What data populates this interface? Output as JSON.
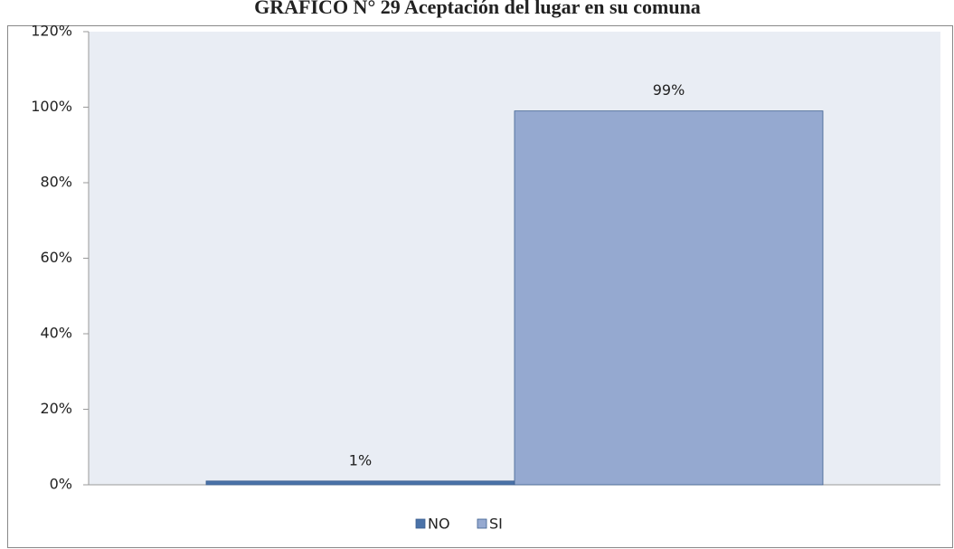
{
  "chart_data": {
    "type": "bar",
    "title": "GRAFICO N° 29 Aceptación del lugar en su comuna",
    "categories": [
      null
    ],
    "series": [
      {
        "name": "NO",
        "color": "#4a72a8",
        "values": [
          1
        ],
        "value_labels": [
          "1%"
        ]
      },
      {
        "name": "SI",
        "color": "#95a9d0",
        "values": [
          99
        ],
        "value_labels": [
          "99%"
        ]
      }
    ],
    "ylim": [
      0,
      120
    ],
    "yticks": [
      {
        "value": 0,
        "label": "0%"
      },
      {
        "value": 20,
        "label": "20%"
      },
      {
        "value": 40,
        "label": "40%"
      },
      {
        "value": 60,
        "label": "60%"
      },
      {
        "value": 80,
        "label": "80%"
      },
      {
        "value": 100,
        "label": "100%"
      },
      {
        "value": 120,
        "label": "120%"
      }
    ],
    "legend": "bottom"
  }
}
